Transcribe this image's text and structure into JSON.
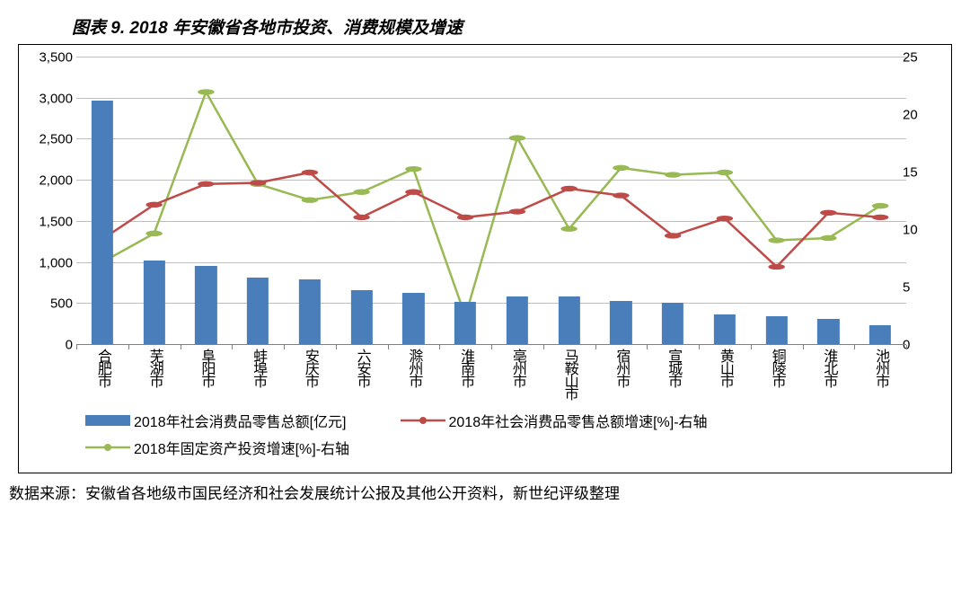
{
  "title": "图表 9. 2018 年安徽省各地市投资、消费规模及增速",
  "source": "数据来源：安徽省各地级市国民经济和社会发展统计公报及其他公开资料，新世纪评级整理",
  "chart": {
    "type": "bar+line-dual-axis",
    "background_color": "#ffffff",
    "grid_color": "#bfbfbf",
    "axis_color": "#808080",
    "font_family": "SimSun",
    "tick_fontsize": 15,
    "xlabel_fontsize": 16,
    "categories": [
      "合肥市",
      "芜湖市",
      "阜阳市",
      "蚌埠市",
      "安庆市",
      "六安市",
      "滁州市",
      "淮南市",
      "亳州市",
      "马鞍山市",
      "宿州市",
      "宣城市",
      "黄山市",
      "铜陵市",
      "淮北市",
      "池州市"
    ],
    "left_axis": {
      "min": 0,
      "max": 3500,
      "step": 500,
      "ticks": [
        "0",
        "500",
        "1,000",
        "1,500",
        "2,000",
        "2,500",
        "3,000",
        "3,500"
      ]
    },
    "right_axis": {
      "min": 0,
      "max": 25,
      "step": 5,
      "ticks": [
        "0",
        "5",
        "10",
        "15",
        "20",
        "25"
      ]
    },
    "bars": {
      "label": "2018年社会消费品零售总额[亿元]",
      "color": "#4a7ebb",
      "width_fraction": 0.42,
      "values": [
        2980,
        1030,
        960,
        820,
        800,
        670,
        640,
        520,
        590,
        590,
        540,
        510,
        370,
        350,
        320,
        240
      ]
    },
    "line_red": {
      "label": "2018年社会消费品零售总额增速[%]-右轴",
      "color": "#be4b48",
      "line_width": 2.5,
      "marker": "circle",
      "marker_size": 5,
      "values": [
        9.2,
        12.2,
        14.0,
        14.1,
        15.0,
        11.1,
        13.3,
        11.1,
        11.6,
        13.6,
        13.0,
        9.5,
        11.0,
        6.8,
        11.5,
        11.1
      ]
    },
    "line_green": {
      "label": "2018年固定资产投资增速[%]-右轴",
      "color": "#98b954",
      "line_width": 2.5,
      "marker": "circle",
      "marker_size": 5,
      "values": [
        7.2,
        9.7,
        22.0,
        14.0,
        12.6,
        13.3,
        15.3,
        2.5,
        18.0,
        10.1,
        15.4,
        14.8,
        15.0,
        9.1,
        9.3,
        12.1
      ]
    },
    "legend_fontsize": 16
  }
}
